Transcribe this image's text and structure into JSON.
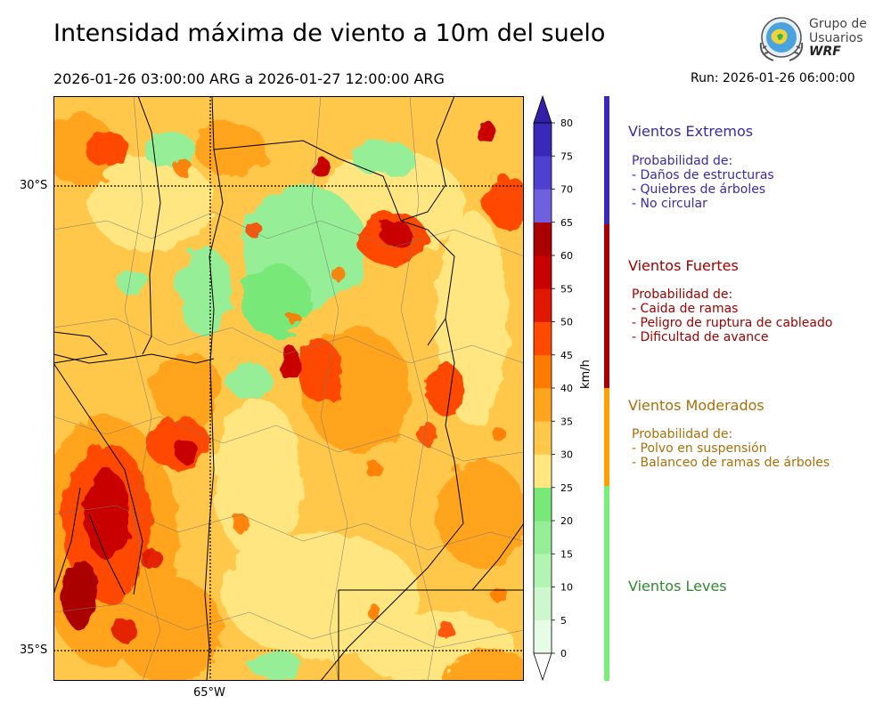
{
  "title": "Intensidad máxima de viento a 10m del suelo",
  "period": "2026-01-26 03:00:00 ARG  a  2026-01-27 12:00:00 ARG",
  "run": "Run: 2026-01-26 06:00:00",
  "logo": {
    "line1": "Grupo de",
    "line2": "Usuarios",
    "line3": "WRF"
  },
  "map": {
    "lat_labels": [
      "30°S",
      "35°S"
    ],
    "lon_labels": [
      "65°W"
    ]
  },
  "colorbar": {
    "unit": "km/h",
    "ticks": [
      "0",
      "5",
      "10",
      "15",
      "20",
      "25",
      "30",
      "35",
      "40",
      "45",
      "50",
      "55",
      "60",
      "65",
      "70",
      "75",
      "80"
    ],
    "colors": [
      "#e6fce6",
      "#cdf8cd",
      "#b2f4b2",
      "#96ee96",
      "#78e878",
      "#ffe680",
      "#ffc84a",
      "#ffa41e",
      "#ff7a00",
      "#ff4a00",
      "#e01800",
      "#c80000",
      "#aa0000",
      "#7060e0",
      "#5040d0",
      "#3a28b8"
    ],
    "extend_top_color": "#3420a8",
    "extend_bottom_color": "#ffffff"
  },
  "categories": [
    {
      "title": "Vientos Extremos",
      "color": "#3a2aa8",
      "lines": [
        "Probabilidad de:",
        "- Daños de estructuras",
        "- Quiebres de árboles",
        "- No circular"
      ]
    },
    {
      "title": "Vientos Fuertes",
      "color": "#a00000",
      "lines": [
        "Probabilidad de:",
        "- Caida de ramas",
        "- Peligro de ruptura de cableado",
        "- Dificultad de avance"
      ]
    },
    {
      "title": "Vientos Moderados",
      "color": "#a8700a",
      "lines": [
        "Probabilidad de:",
        "- Polvo en suspensión",
        "- Balanceo de ramas de árboles"
      ]
    },
    {
      "title": "Vientos Leves",
      "color": "#2e8b2e",
      "lines": []
    }
  ],
  "band_colors": [
    "#3a28b8",
    "#a80000",
    "#ffa000",
    "#78f078"
  ]
}
